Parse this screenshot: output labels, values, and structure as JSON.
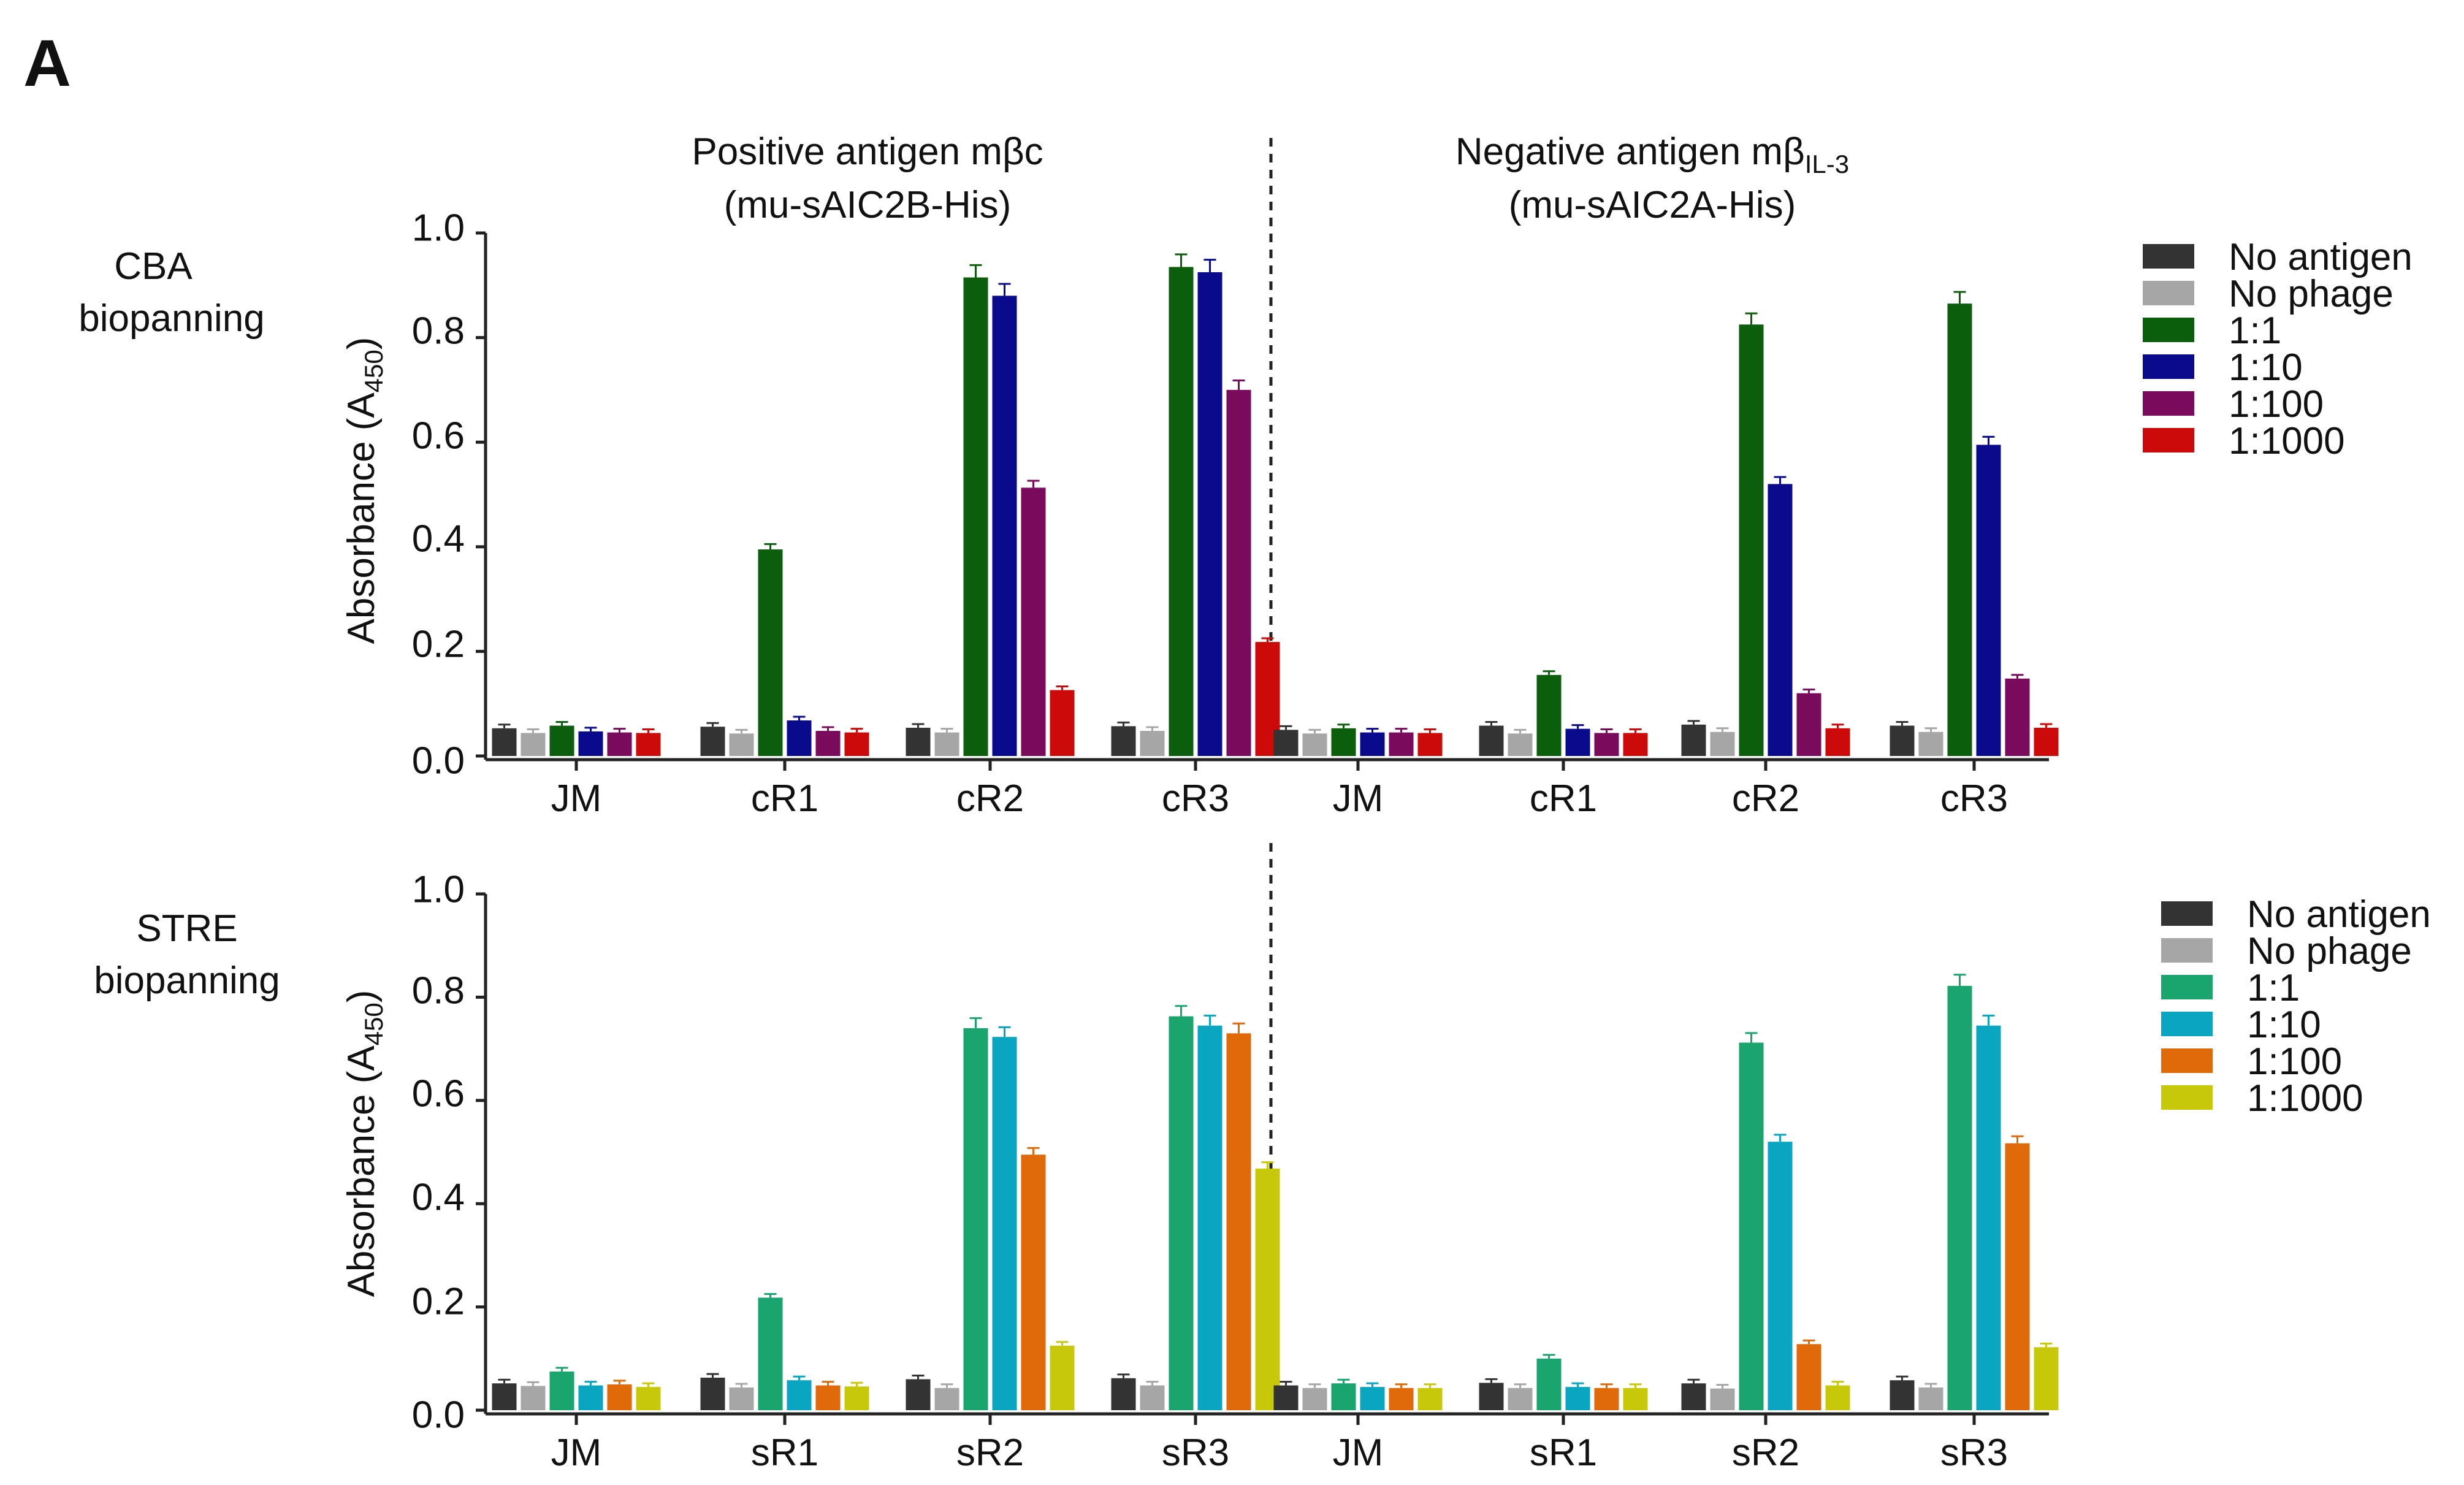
{
  "figure": {
    "panel_label": "A",
    "columns": [
      {
        "title_line1": "Positive antigen mβc",
        "title_line2": "(mu-sAIC2B-His)"
      },
      {
        "title_line1_main": "Negative antigen mβ",
        "title_line1_sub": "IL-3",
        "title_line2": "(mu-sAIC2A-His)"
      }
    ],
    "rows": [
      {
        "label_line1": "CBA",
        "label_line2": "biopanning"
      },
      {
        "label_line1": "STRE",
        "label_line2": "biopanning"
      }
    ],
    "ylabel_main": "Absorbance (A",
    "ylabel_sub": "450",
    "ylabel_end": ")",
    "yticks": [
      "0.0",
      "0.2",
      "0.4",
      "0.6",
      "0.8",
      "1.0"
    ]
  },
  "colors": {
    "No antigen": "#333333",
    "No phage": "#a6a6a6",
    "cba_1_1": "#0b5e0b",
    "cba_1_10": "#0a0a8c",
    "cba_1_100": "#7a0a5c",
    "cba_1_1000": "#cc0a0a",
    "stre_1_1": "#1aa56e",
    "stre_1_10": "#0aa5c0",
    "stre_1_100": "#e06a0a",
    "stre_1_1000": "#c8c80a"
  },
  "chart_data": [
    {
      "type": "bar",
      "title": "Positive antigen mβc (mu-sAIC2B-His)",
      "row": "CBA biopanning",
      "ylabel": "Absorbance (A450)",
      "ylim": [
        0,
        1.0
      ],
      "categories": [
        "JM",
        "cR1",
        "cR2",
        "cR3"
      ],
      "legend": [
        "No antigen",
        "No phage",
        "1:1",
        "1:10",
        "1:100",
        "1:1000"
      ],
      "series": [
        {
          "name": "No antigen",
          "values": [
            0.053,
            0.056,
            0.054,
            0.057
          ]
        },
        {
          "name": "No phage",
          "values": [
            0.044,
            0.043,
            0.045,
            0.048
          ]
        },
        {
          "name": "1:1",
          "values": [
            0.058,
            0.395,
            0.915,
            0.935
          ]
        },
        {
          "name": "1:10",
          "values": [
            0.047,
            0.068,
            0.88,
            0.925
          ]
        },
        {
          "name": "1:100",
          "values": [
            0.045,
            0.048,
            0.513,
            0.7
          ]
        },
        {
          "name": "1:1000",
          "values": [
            0.044,
            0.045,
            0.126,
            0.218
          ]
        }
      ]
    },
    {
      "type": "bar",
      "title": "Negative antigen mβIL-3 (mu-sAIC2A-His)",
      "row": "CBA biopanning",
      "ylabel": "Absorbance (A450)",
      "ylim": [
        0,
        1.0
      ],
      "categories": [
        "JM",
        "cR1",
        "cR2",
        "cR3"
      ],
      "legend": [
        "No antigen",
        "No phage",
        "1:1",
        "1:10",
        "1:100",
        "1:1000"
      ],
      "series": [
        {
          "name": "No antigen",
          "values": [
            0.05,
            0.058,
            0.06,
            0.058
          ]
        },
        {
          "name": "No phage",
          "values": [
            0.043,
            0.043,
            0.046,
            0.046
          ]
        },
        {
          "name": "1:1",
          "values": [
            0.053,
            0.155,
            0.825,
            0.865
          ]
        },
        {
          "name": "1:10",
          "values": [
            0.045,
            0.052,
            0.52,
            0.595
          ]
        },
        {
          "name": "1:100",
          "values": [
            0.045,
            0.044,
            0.12,
            0.148
          ]
        },
        {
          "name": "1:1000",
          "values": [
            0.044,
            0.044,
            0.053,
            0.054
          ]
        }
      ]
    },
    {
      "type": "bar",
      "title": "Positive antigen mβc (mu-sAIC2B-His)",
      "row": "STRE biopanning",
      "ylabel": "Absorbance (A450)",
      "ylim": [
        0,
        1.0
      ],
      "categories": [
        "JM",
        "sR1",
        "sR2",
        "sR3"
      ],
      "legend": [
        "No antigen",
        "No phage",
        "1:1",
        "1:10",
        "1:100",
        "1:1000"
      ],
      "series": [
        {
          "name": "No antigen",
          "values": [
            0.052,
            0.063,
            0.06,
            0.062
          ]
        },
        {
          "name": "No phage",
          "values": [
            0.047,
            0.044,
            0.043,
            0.048
          ]
        },
        {
          "name": "1:1",
          "values": [
            0.075,
            0.218,
            0.74,
            0.763
          ]
        },
        {
          "name": "1:10",
          "values": [
            0.048,
            0.058,
            0.723,
            0.745
          ]
        },
        {
          "name": "1:100",
          "values": [
            0.05,
            0.048,
            0.495,
            0.73
          ]
        },
        {
          "name": "1:1000",
          "values": [
            0.045,
            0.046,
            0.125,
            0.468
          ]
        }
      ]
    },
    {
      "type": "bar",
      "title": "Negative antigen mβIL-3 (mu-sAIC2A-His)",
      "row": "STRE biopanning",
      "ylabel": "Absorbance (A450)",
      "ylim": [
        0,
        1.0
      ],
      "categories": [
        "JM",
        "sR1",
        "sR2",
        "sR3"
      ],
      "legend": [
        "No antigen",
        "No phage",
        "1:1",
        "1:10",
        "1:100",
        "1:1000"
      ],
      "series": [
        {
          "name": "No antigen",
          "values": [
            0.048,
            0.053,
            0.052,
            0.058
          ]
        },
        {
          "name": "No phage",
          "values": [
            0.043,
            0.043,
            0.042,
            0.044
          ]
        },
        {
          "name": "1:1",
          "values": [
            0.052,
            0.1,
            0.712,
            0.822
          ]
        },
        {
          "name": "1:10",
          "values": [
            0.045,
            0.045,
            0.52,
            0.745
          ]
        },
        {
          "name": "1:100",
          "values": [
            0.043,
            0.043,
            0.128,
            0.517
          ]
        },
        {
          "name": "1:1000",
          "values": [
            0.043,
            0.043,
            0.048,
            0.122
          ]
        }
      ]
    }
  ],
  "legends": [
    {
      "row": "CBA biopanning",
      "items": [
        {
          "label": "No antigen",
          "color_key": "No antigen"
        },
        {
          "label": "No phage",
          "color_key": "No phage"
        },
        {
          "label": "1:1",
          "color_key": "cba_1_1"
        },
        {
          "label": "1:10",
          "color_key": "cba_1_10"
        },
        {
          "label": "1:100",
          "color_key": "cba_1_100"
        },
        {
          "label": "1:1000",
          "color_key": "cba_1_1000"
        }
      ]
    },
    {
      "row": "STRE biopanning",
      "items": [
        {
          "label": "No antigen",
          "color_key": "No antigen"
        },
        {
          "label": "No phage",
          "color_key": "No phage"
        },
        {
          "label": "1:1",
          "color_key": "stre_1_1"
        },
        {
          "label": "1:10",
          "color_key": "stre_1_10"
        },
        {
          "label": "1:100",
          "color_key": "stre_1_100"
        },
        {
          "label": "1:1000",
          "color_key": "stre_1_1000"
        }
      ]
    }
  ]
}
